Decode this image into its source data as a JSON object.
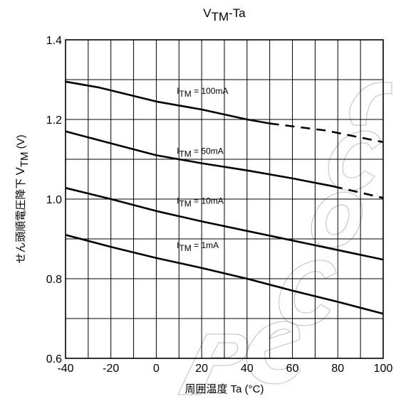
{
  "chart_data": {
    "type": "line",
    "title": {
      "main": "V",
      "sub": "TM",
      "rest": "-Ta"
    },
    "xlabel": {
      "text": "周囲温度",
      "symbol": "Ta",
      "unit": "(°C)"
    },
    "ylabel": {
      "text": "せん頭順電圧降下",
      "main": "V",
      "sub": "TM",
      "unit": "(V)"
    },
    "xlim": [
      -40,
      100
    ],
    "ylim": [
      0.6,
      1.4
    ],
    "xticks": [
      -40,
      -20,
      0,
      20,
      40,
      60,
      80,
      100
    ],
    "yticks": [
      0.6,
      0.8,
      1.0,
      1.2,
      1.4
    ],
    "ytick_labels": [
      "0.6",
      "0.8",
      "1.0",
      "1.2",
      "1.4"
    ],
    "x_minor_step": 10,
    "y_minor_step": 0.1,
    "grid": true,
    "series": [
      {
        "label_main": "I",
        "label_sub": "TM",
        "label_rest": " = 100mA",
        "label_at": [
          9,
          1.264
        ],
        "points": [
          [
            -40,
            1.295
          ],
          [
            -25,
            1.28
          ],
          [
            0,
            1.245
          ],
          [
            20,
            1.225
          ],
          [
            40,
            1.2
          ],
          [
            50,
            1.19
          ]
        ],
        "dashed_points": [
          [
            50,
            1.19
          ],
          [
            75,
            1.172
          ],
          [
            100,
            1.143
          ]
        ]
      },
      {
        "label_main": "I",
        "label_sub": "TM",
        "label_rest": " = 50mA",
        "label_at": [
          9,
          1.113
        ],
        "points": [
          [
            -40,
            1.17
          ],
          [
            -20,
            1.14
          ],
          [
            0,
            1.11
          ],
          [
            20,
            1.09
          ],
          [
            40,
            1.072
          ],
          [
            60,
            1.052
          ],
          [
            78,
            1.032
          ]
        ],
        "dashed_points": [
          [
            78,
            1.032
          ],
          [
            100,
            1.003
          ]
        ]
      },
      {
        "label_main": "I",
        "label_sub": "TM",
        "label_rest": " = 10mA",
        "label_at": [
          9,
          0.988
        ],
        "points": [
          [
            -40,
            1.028
          ],
          [
            -20,
            1.0
          ],
          [
            0,
            0.97
          ],
          [
            20,
            0.944
          ],
          [
            40,
            0.92
          ],
          [
            60,
            0.896
          ],
          [
            80,
            0.872
          ],
          [
            100,
            0.848
          ]
        ],
        "dashed_points": []
      },
      {
        "label_main": "I",
        "label_sub": "TM",
        "label_rest": " = 1mA",
        "label_at": [
          9,
          0.877
        ],
        "points": [
          [
            -40,
            0.91
          ],
          [
            -20,
            0.88
          ],
          [
            0,
            0.852
          ],
          [
            20,
            0.827
          ],
          [
            40,
            0.8
          ],
          [
            60,
            0.77
          ],
          [
            80,
            0.742
          ],
          [
            100,
            0.712
          ]
        ],
        "dashed_points": []
      }
    ]
  }
}
